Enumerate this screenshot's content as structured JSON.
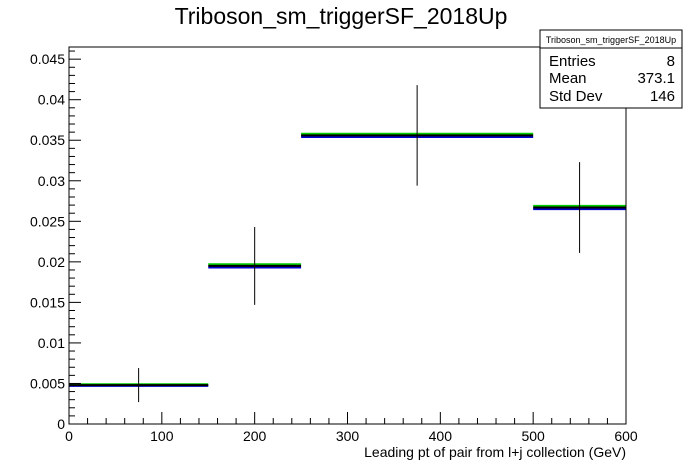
{
  "chart_data": {
    "type": "histogram",
    "title": "Triboson_sm_triggerSF_2018Up",
    "xlabel": "Leading pt of pair from l+j collection (GeV)",
    "ylabel": "",
    "xlim": [
      0,
      600
    ],
    "ylim": [
      0,
      0.0465
    ],
    "x_ticks": [
      0,
      100,
      200,
      300,
      400,
      500,
      600
    ],
    "x_tick_labels": [
      "0",
      "100",
      "200",
      "300",
      "400",
      "500",
      "600"
    ],
    "y_ticks": [
      0,
      0.005,
      0.01,
      0.015,
      0.02,
      0.025,
      0.03,
      0.035,
      0.04,
      0.045
    ],
    "y_tick_labels": [
      "0",
      "0.005",
      "0.01",
      "0.015",
      "0.02",
      "0.025",
      "0.03",
      "0.035",
      "0.04",
      "0.045"
    ],
    "grid": false,
    "stats_box": {
      "title": "Triboson_sm_triggerSF_2018Up",
      "placement": "top-right",
      "rows": [
        {
          "label": "Entries",
          "value": "8"
        },
        {
          "label": "Mean",
          "value": "373.1"
        },
        {
          "label": "Std Dev",
          "value": "146"
        }
      ]
    },
    "bins": [
      {
        "x_low": 0,
        "x_high": 150,
        "x_center": 75,
        "value": 0.0048,
        "error": 0.0021
      },
      {
        "x_low": 150,
        "x_high": 250,
        "x_center": 200,
        "value": 0.0195,
        "error": 0.0048
      },
      {
        "x_low": 250,
        "x_high": 500,
        "x_center": 375,
        "value": 0.0356,
        "error": 0.0062
      },
      {
        "x_low": 500,
        "x_high": 600,
        "x_center": 550,
        "value": 0.0267,
        "error": 0.0056
      }
    ],
    "series": [
      {
        "color": "#00cc00",
        "values": [
          0.0049,
          0.0197,
          0.0358,
          0.0269
        ]
      },
      {
        "color": "#0000cc",
        "values": [
          0.0047,
          0.0193,
          0.0354,
          0.0265
        ]
      },
      {
        "color": "#000000",
        "values": [
          0.0048,
          0.0195,
          0.0356,
          0.0267
        ]
      }
    ]
  }
}
